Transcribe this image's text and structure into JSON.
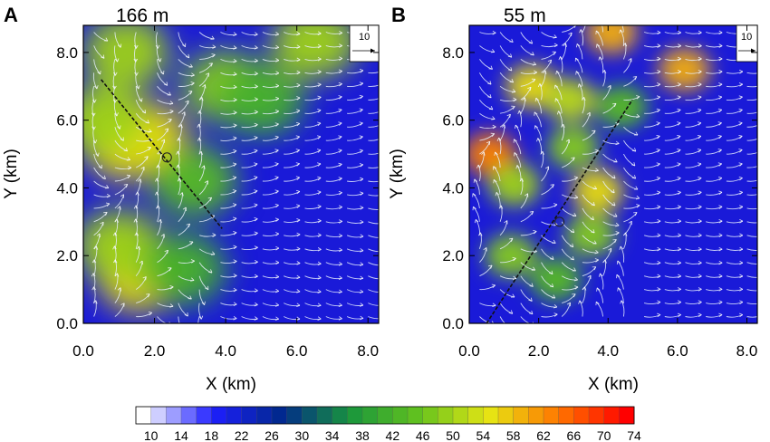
{
  "panels": [
    {
      "letter": "A",
      "title": "166 m",
      "xlabel": "X (km)",
      "ylabel": "Y (km)",
      "xticks": [
        "0.0",
        "2.0",
        "4.0",
        "6.0",
        "8.0"
      ],
      "yticks": [
        "0.0",
        "2.0",
        "4.0",
        "6.0",
        "8.0"
      ],
      "ref_vector_label": "10"
    },
    {
      "letter": "B",
      "title": "55 m",
      "xlabel": "X (km)",
      "ylabel": "Y (km)",
      "xticks": [
        "0.0",
        "2.0",
        "4.0",
        "6.0",
        "8.0"
      ],
      "yticks": [
        "0.0",
        "2.0",
        "4.0",
        "6.0",
        "8.0"
      ],
      "ref_vector_label": "10"
    }
  ],
  "colorbar": {
    "labels": [
      "10",
      "14",
      "18",
      "22",
      "26",
      "30",
      "34",
      "38",
      "42",
      "46",
      "50",
      "54",
      "58",
      "62",
      "66",
      "70",
      "74"
    ],
    "colors": [
      "#ffffff",
      "#1e1eff",
      "#00288c",
      "#19963c",
      "#64c31e",
      "#e6e614",
      "#ff7800",
      "#ff0000"
    ]
  },
  "chart_data": [
    {
      "type": "heatmap",
      "title": "166 m",
      "xlabel": "X (km)",
      "ylabel": "Y (km)",
      "xlim": [
        0,
        8.3
      ],
      "ylim": [
        0,
        8.8
      ],
      "ticks": [
        0,
        2,
        4,
        6,
        8
      ],
      "value_range": [
        10,
        76
      ],
      "cross_section": {
        "x": [
          0.5,
          3.9
        ],
        "y": [
          7.2,
          2.8
        ]
      },
      "vortex_center": {
        "x": 2.35,
        "y": 4.9
      },
      "field_blobs": [
        {
          "x": 1.2,
          "y": 5.3,
          "value": 58
        },
        {
          "x": 1.7,
          "y": 5.5,
          "value": 58
        },
        {
          "x": 1.6,
          "y": 1.4,
          "value": 58
        },
        {
          "x": 1.2,
          "y": 8.0,
          "value": 52
        },
        {
          "x": 6.5,
          "y": 8.3,
          "value": 52
        },
        {
          "x": 4.0,
          "y": 7.0,
          "value": 50
        },
        {
          "x": 0.6,
          "y": 6.0,
          "value": 52
        },
        {
          "x": 1.0,
          "y": 2.3,
          "value": 52
        },
        {
          "x": 2.8,
          "y": 1.6,
          "value": 44
        },
        {
          "x": 3.1,
          "y": 4.2,
          "value": 46
        },
        {
          "x": 5.0,
          "y": 6.6,
          "value": 44
        }
      ]
    },
    {
      "type": "heatmap",
      "title": "55 m",
      "xlabel": "X (km)",
      "ylabel": "Y (km)",
      "xlim": [
        0,
        8.3
      ],
      "ylim": [
        0,
        8.8
      ],
      "ticks": [
        0,
        2,
        4,
        6,
        8
      ],
      "value_range": [
        10,
        76
      ],
      "cross_section": {
        "x": [
          0.5,
          4.7
        ],
        "y": [
          0.0,
          6.6
        ]
      },
      "vortex_center": {
        "x": 2.6,
        "y": 3.0
      },
      "field_blobs": [
        {
          "x": 0.6,
          "y": 5.0,
          "value": 66
        },
        {
          "x": 1.8,
          "y": 7.0,
          "value": 58
        },
        {
          "x": 4.1,
          "y": 8.6,
          "value": 62
        },
        {
          "x": 6.2,
          "y": 7.5,
          "value": 62
        },
        {
          "x": 2.9,
          "y": 6.6,
          "value": 54
        },
        {
          "x": 3.7,
          "y": 3.9,
          "value": 58
        },
        {
          "x": 1.3,
          "y": 4.1,
          "value": 52
        },
        {
          "x": 1.2,
          "y": 2.0,
          "value": 50
        },
        {
          "x": 2.5,
          "y": 1.3,
          "value": 46
        },
        {
          "x": 3.5,
          "y": 2.6,
          "value": 50
        },
        {
          "x": 3.0,
          "y": 5.2,
          "value": 50
        },
        {
          "x": 4.4,
          "y": 6.4,
          "value": 46
        }
      ]
    }
  ]
}
